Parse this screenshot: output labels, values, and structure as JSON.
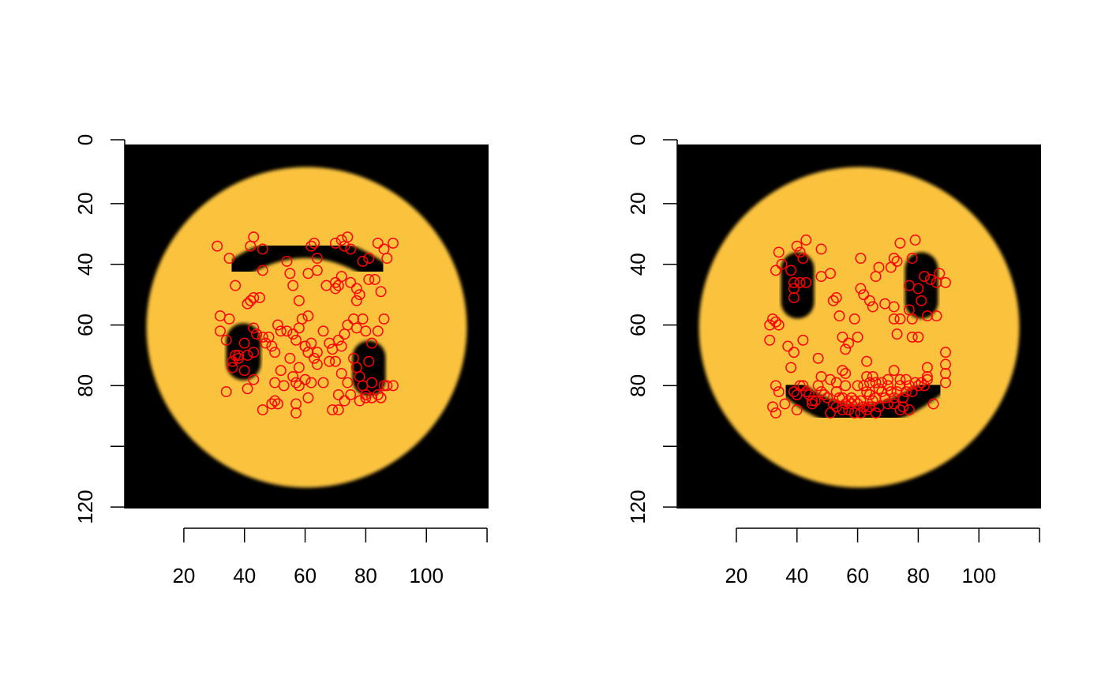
{
  "chart_data": [
    {
      "type": "scatter",
      "background_image": "frowning-face",
      "x_ticks": [
        "20",
        "40",
        "60",
        "80",
        "100"
      ],
      "y_ticks": [
        "0",
        "20",
        "40",
        "60",
        "80",
        "",
        "120"
      ],
      "xlim": [
        1,
        120
      ],
      "ylim": [
        1,
        120
      ],
      "y_reversed": true,
      "point_color": "#ff0000",
      "face_color": "#fbc33e",
      "feature_color": "#000000",
      "points": [
        [
          31,
          34
        ],
        [
          35,
          38
        ],
        [
          43,
          31
        ],
        [
          42,
          34
        ],
        [
          46,
          35
        ],
        [
          62,
          34
        ],
        [
          63,
          33
        ],
        [
          64,
          38
        ],
        [
          70,
          33
        ],
        [
          72,
          32
        ],
        [
          74,
          31
        ],
        [
          73,
          34
        ],
        [
          75,
          35
        ],
        [
          84,
          33
        ],
        [
          86,
          35
        ],
        [
          89,
          33
        ],
        [
          87,
          38
        ],
        [
          79,
          39
        ],
        [
          81,
          38
        ],
        [
          37,
          47
        ],
        [
          42,
          52
        ],
        [
          41,
          53
        ],
        [
          43,
          51
        ],
        [
          45,
          51
        ],
        [
          46,
          42
        ],
        [
          55,
          43
        ],
        [
          54,
          39
        ],
        [
          56,
          47
        ],
        [
          58,
          52
        ],
        [
          61,
          43
        ],
        [
          64,
          42
        ],
        [
          67,
          47
        ],
        [
          70,
          46
        ],
        [
          70,
          48
        ],
        [
          71,
          47
        ],
        [
          72,
          44
        ],
        [
          75,
          46
        ],
        [
          77,
          48
        ],
        [
          77,
          52
        ],
        [
          78,
          50
        ],
        [
          81,
          45
        ],
        [
          83,
          45
        ],
        [
          85,
          49
        ],
        [
          32,
          57
        ],
        [
          35,
          58
        ],
        [
          32,
          62
        ],
        [
          34,
          65
        ],
        [
          37,
          70
        ],
        [
          36,
          72
        ],
        [
          36,
          74
        ],
        [
          38,
          70
        ],
        [
          40,
          66
        ],
        [
          41,
          70
        ],
        [
          43,
          61
        ],
        [
          44,
          63
        ],
        [
          46,
          64
        ],
        [
          47,
          66
        ],
        [
          48,
          64
        ],
        [
          49,
          67
        ],
        [
          50,
          69
        ],
        [
          51,
          60
        ],
        [
          52,
          62
        ],
        [
          54,
          62
        ],
        [
          56,
          63
        ],
        [
          57,
          65
        ],
        [
          58,
          61
        ],
        [
          59,
          58
        ],
        [
          61,
          57
        ],
        [
          60,
          67
        ],
        [
          61,
          69
        ],
        [
          62,
          66
        ],
        [
          63,
          71
        ],
        [
          64,
          69
        ],
        [
          66,
          62
        ],
        [
          68,
          66
        ],
        [
          69,
          68
        ],
        [
          71,
          65
        ],
        [
          72,
          67
        ],
        [
          73,
          63
        ],
        [
          74,
          60
        ],
        [
          76,
          58
        ],
        [
          77,
          61
        ],
        [
          79,
          58
        ],
        [
          80,
          62
        ],
        [
          82,
          66
        ],
        [
          84,
          62
        ],
        [
          86,
          58
        ],
        [
          38,
          71
        ],
        [
          41,
          81
        ],
        [
          43,
          78
        ],
        [
          34,
          82
        ],
        [
          50,
          79
        ],
        [
          52,
          75
        ],
        [
          53,
          80
        ],
        [
          55,
          71
        ],
        [
          56,
          77
        ],
        [
          58,
          80
        ],
        [
          60,
          78
        ],
        [
          61,
          84
        ],
        [
          62,
          79
        ],
        [
          64,
          73
        ],
        [
          66,
          79
        ],
        [
          68,
          72
        ],
        [
          70,
          72
        ],
        [
          71,
          83
        ],
        [
          72,
          76
        ],
        [
          74,
          79
        ],
        [
          76,
          71
        ],
        [
          77,
          74
        ],
        [
          78,
          77
        ],
        [
          79,
          80
        ],
        [
          80,
          83
        ],
        [
          81,
          72
        ],
        [
          82,
          79
        ],
        [
          84,
          83
        ],
        [
          86,
          80
        ],
        [
          87,
          80
        ],
        [
          89,
          80
        ],
        [
          46,
          88
        ],
        [
          49,
          86
        ],
        [
          50,
          85
        ],
        [
          51,
          86
        ],
        [
          57,
          86
        ],
        [
          57,
          89
        ],
        [
          69,
          88
        ],
        [
          71,
          88
        ],
        [
          73,
          85
        ],
        [
          75,
          83
        ],
        [
          78,
          85
        ],
        [
          80,
          84
        ],
        [
          82,
          84
        ],
        [
          85,
          84
        ],
        [
          57,
          79
        ],
        [
          60,
          67
        ],
        [
          58,
          74
        ],
        [
          40,
          75
        ],
        [
          43,
          69
        ]
      ]
    },
    {
      "type": "scatter",
      "background_image": "smiling-face",
      "x_ticks": [
        "20",
        "40",
        "60",
        "80",
        "100"
      ],
      "y_ticks": [
        "0",
        "20",
        "40",
        "60",
        "80",
        "",
        "120"
      ],
      "xlim": [
        1,
        120
      ],
      "ylim": [
        1,
        120
      ],
      "y_reversed": true,
      "point_color": "#ff0000",
      "face_color": "#fbc33e",
      "feature_color": "#000000",
      "points": [
        [
          34,
          36
        ],
        [
          35,
          40
        ],
        [
          40,
          34
        ],
        [
          41,
          36
        ],
        [
          43,
          32
        ],
        [
          42,
          38
        ],
        [
          48,
          35
        ],
        [
          33,
          42
        ],
        [
          38,
          42
        ],
        [
          39,
          46
        ],
        [
          39,
          48
        ],
        [
          39,
          51
        ],
        [
          41,
          46
        ],
        [
          43,
          46
        ],
        [
          48,
          44
        ],
        [
          51,
          43
        ],
        [
          52,
          52
        ],
        [
          53,
          51
        ],
        [
          55,
          64
        ],
        [
          56,
          68
        ],
        [
          57,
          66
        ],
        [
          61,
          38
        ],
        [
          61,
          48
        ],
        [
          62,
          50
        ],
        [
          64,
          52
        ],
        [
          65,
          54
        ],
        [
          66,
          44
        ],
        [
          67,
          41
        ],
        [
          69,
          53
        ],
        [
          71,
          41
        ],
        [
          72,
          38
        ],
        [
          73,
          39
        ],
        [
          72,
          54
        ],
        [
          72,
          58
        ],
        [
          74,
          58
        ],
        [
          74,
          33
        ],
        [
          77,
          47
        ],
        [
          77,
          55
        ],
        [
          78,
          38
        ],
        [
          79,
          32
        ],
        [
          78,
          58
        ],
        [
          80,
          48
        ],
        [
          81,
          52
        ],
        [
          82,
          44
        ],
        [
          84,
          45
        ],
        [
          86,
          46
        ],
        [
          87,
          43
        ],
        [
          89,
          46
        ],
        [
          86,
          57
        ],
        [
          31,
          60
        ],
        [
          32,
          58
        ],
        [
          33,
          59
        ],
        [
          34,
          60
        ],
        [
          31,
          65
        ],
        [
          37,
          67
        ],
        [
          39,
          69
        ],
        [
          42,
          65
        ],
        [
          54,
          57
        ],
        [
          59,
          58
        ],
        [
          60,
          64
        ],
        [
          63,
          72
        ],
        [
          73,
          63
        ],
        [
          78,
          64
        ],
        [
          80,
          64
        ],
        [
          83,
          57
        ],
        [
          89,
          69
        ],
        [
          89,
          73
        ],
        [
          89,
          76
        ],
        [
          89,
          79
        ],
        [
          83,
          74
        ],
        [
          83,
          77
        ],
        [
          32,
          87
        ],
        [
          33,
          80
        ],
        [
          34,
          82
        ],
        [
          36,
          86
        ],
        [
          38,
          74
        ],
        [
          39,
          82
        ],
        [
          40,
          83
        ],
        [
          41,
          80
        ],
        [
          42,
          80
        ],
        [
          43,
          82
        ],
        [
          44,
          83
        ],
        [
          45,
          85
        ],
        [
          46,
          85
        ],
        [
          47,
          80
        ],
        [
          48,
          82
        ],
        [
          49,
          83
        ],
        [
          50,
          84
        ],
        [
          51,
          78
        ],
        [
          52,
          86
        ],
        [
          53,
          82
        ],
        [
          54,
          84
        ],
        [
          55,
          75
        ],
        [
          55,
          84
        ],
        [
          56,
          76
        ],
        [
          56,
          86
        ],
        [
          57,
          85
        ],
        [
          58,
          84
        ],
        [
          59,
          85
        ],
        [
          60,
          86
        ],
        [
          61,
          85
        ],
        [
          62,
          80
        ],
        [
          63,
          82
        ],
        [
          64,
          83
        ],
        [
          65,
          85
        ],
        [
          66,
          84
        ],
        [
          67,
          81
        ],
        [
          68,
          82
        ],
        [
          69,
          84
        ],
        [
          70,
          80
        ],
        [
          71,
          82
        ],
        [
          72,
          75
        ],
        [
          72,
          84
        ],
        [
          73,
          82
        ],
        [
          74,
          80
        ],
        [
          75,
          84
        ],
        [
          76,
          82
        ],
        [
          77,
          80
        ],
        [
          78,
          82
        ],
        [
          80,
          80
        ],
        [
          81,
          79
        ],
        [
          82,
          80
        ],
        [
          83,
          78
        ],
        [
          85,
          86
        ],
        [
          33,
          89
        ],
        [
          40,
          88
        ],
        [
          45,
          86
        ],
        [
          51,
          89
        ],
        [
          53,
          87
        ],
        [
          55,
          88
        ],
        [
          57,
          88
        ],
        [
          58,
          86
        ],
        [
          59,
          89
        ],
        [
          61,
          89
        ],
        [
          62,
          87
        ],
        [
          63,
          88
        ],
        [
          64,
          87
        ],
        [
          66,
          89
        ],
        [
          67,
          87
        ],
        [
          70,
          86
        ],
        [
          72,
          86
        ],
        [
          74,
          88
        ],
        [
          75,
          87
        ],
        [
          77,
          88
        ],
        [
          48,
          77
        ],
        [
          53,
          79
        ],
        [
          56,
          80
        ],
        [
          60,
          80
        ],
        [
          64,
          79
        ],
        [
          68,
          79
        ],
        [
          70,
          78
        ],
        [
          74,
          78
        ],
        [
          76,
          78
        ],
        [
          79,
          79
        ],
        [
          47,
          71
        ],
        [
          63,
          77
        ],
        [
          65,
          77
        ],
        [
          66,
          79
        ]
      ]
    }
  ]
}
